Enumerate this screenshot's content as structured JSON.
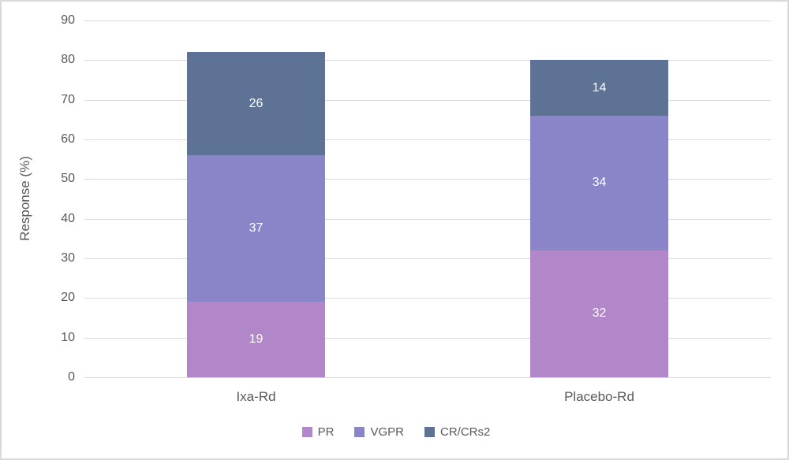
{
  "chart_data": {
    "type": "bar",
    "variant": "stacked-vertical",
    "categories": [
      "Ixa-Rd",
      "Placebo-Rd"
    ],
    "series": [
      {
        "name": "PR",
        "color": "#b187c9",
        "values": [
          19,
          32
        ]
      },
      {
        "name": "VGPR",
        "color": "#8985c8",
        "values": [
          37,
          34
        ]
      },
      {
        "name": "CR/CRs2",
        "color": "#5d7295",
        "values": [
          26,
          14
        ]
      }
    ],
    "title": "",
    "xlabel": "",
    "ylabel": "Response (%)",
    "ylim": [
      0,
      90
    ],
    "ytick_step": 10,
    "grid": true,
    "legend_position": "bottom",
    "bar_value_label_color": "#ffffff"
  },
  "colors": {
    "gridline": "#d9d9d9",
    "axis_text": "#595959",
    "background": "#ffffff",
    "figure_border": "#d9d9d9"
  }
}
